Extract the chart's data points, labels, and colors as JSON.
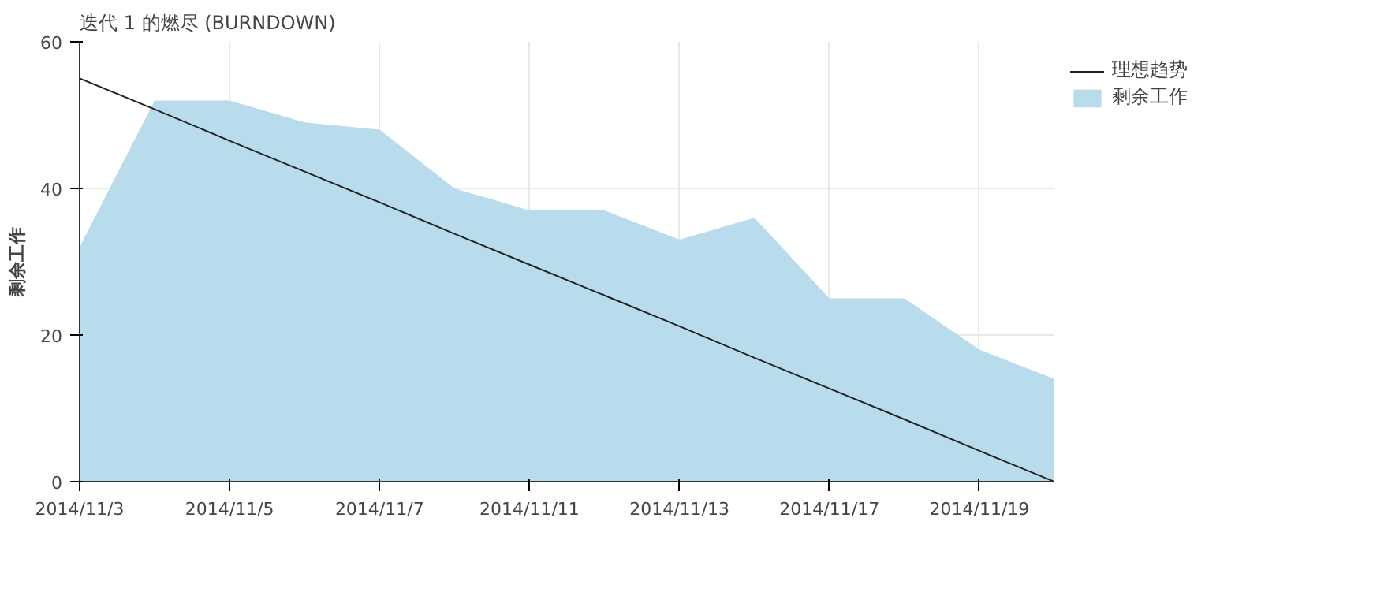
{
  "chart_data": {
    "type": "area",
    "title": "迭代 1 的燃尽 (BURNDOWN)",
    "ylabel": "剩余工作",
    "categories": [
      "2014/11/3",
      null,
      "2014/11/5",
      null,
      "2014/11/7",
      null,
      "2014/11/11",
      null,
      "2014/11/13",
      null,
      "2014/11/17",
      null,
      "2014/11/19",
      null
    ],
    "series": [
      {
        "name": "理想趋势",
        "type": "line",
        "color": "#222222",
        "values": [
          55,
          50.8,
          46.5,
          42.3,
          38.1,
          33.8,
          29.6,
          25.4,
          21.2,
          16.9,
          12.7,
          8.5,
          4.2,
          0
        ]
      },
      {
        "name": "剩余工作",
        "color": "#b8dcec",
        "values": [
          32,
          52,
          52,
          49,
          48,
          40,
          37,
          37,
          33,
          36,
          25,
          25,
          18,
          14
        ]
      }
    ],
    "ylim": [
      0,
      60
    ],
    "yticks": [
      0,
      20,
      40,
      60
    ],
    "grid": true,
    "legend": "top right"
  }
}
